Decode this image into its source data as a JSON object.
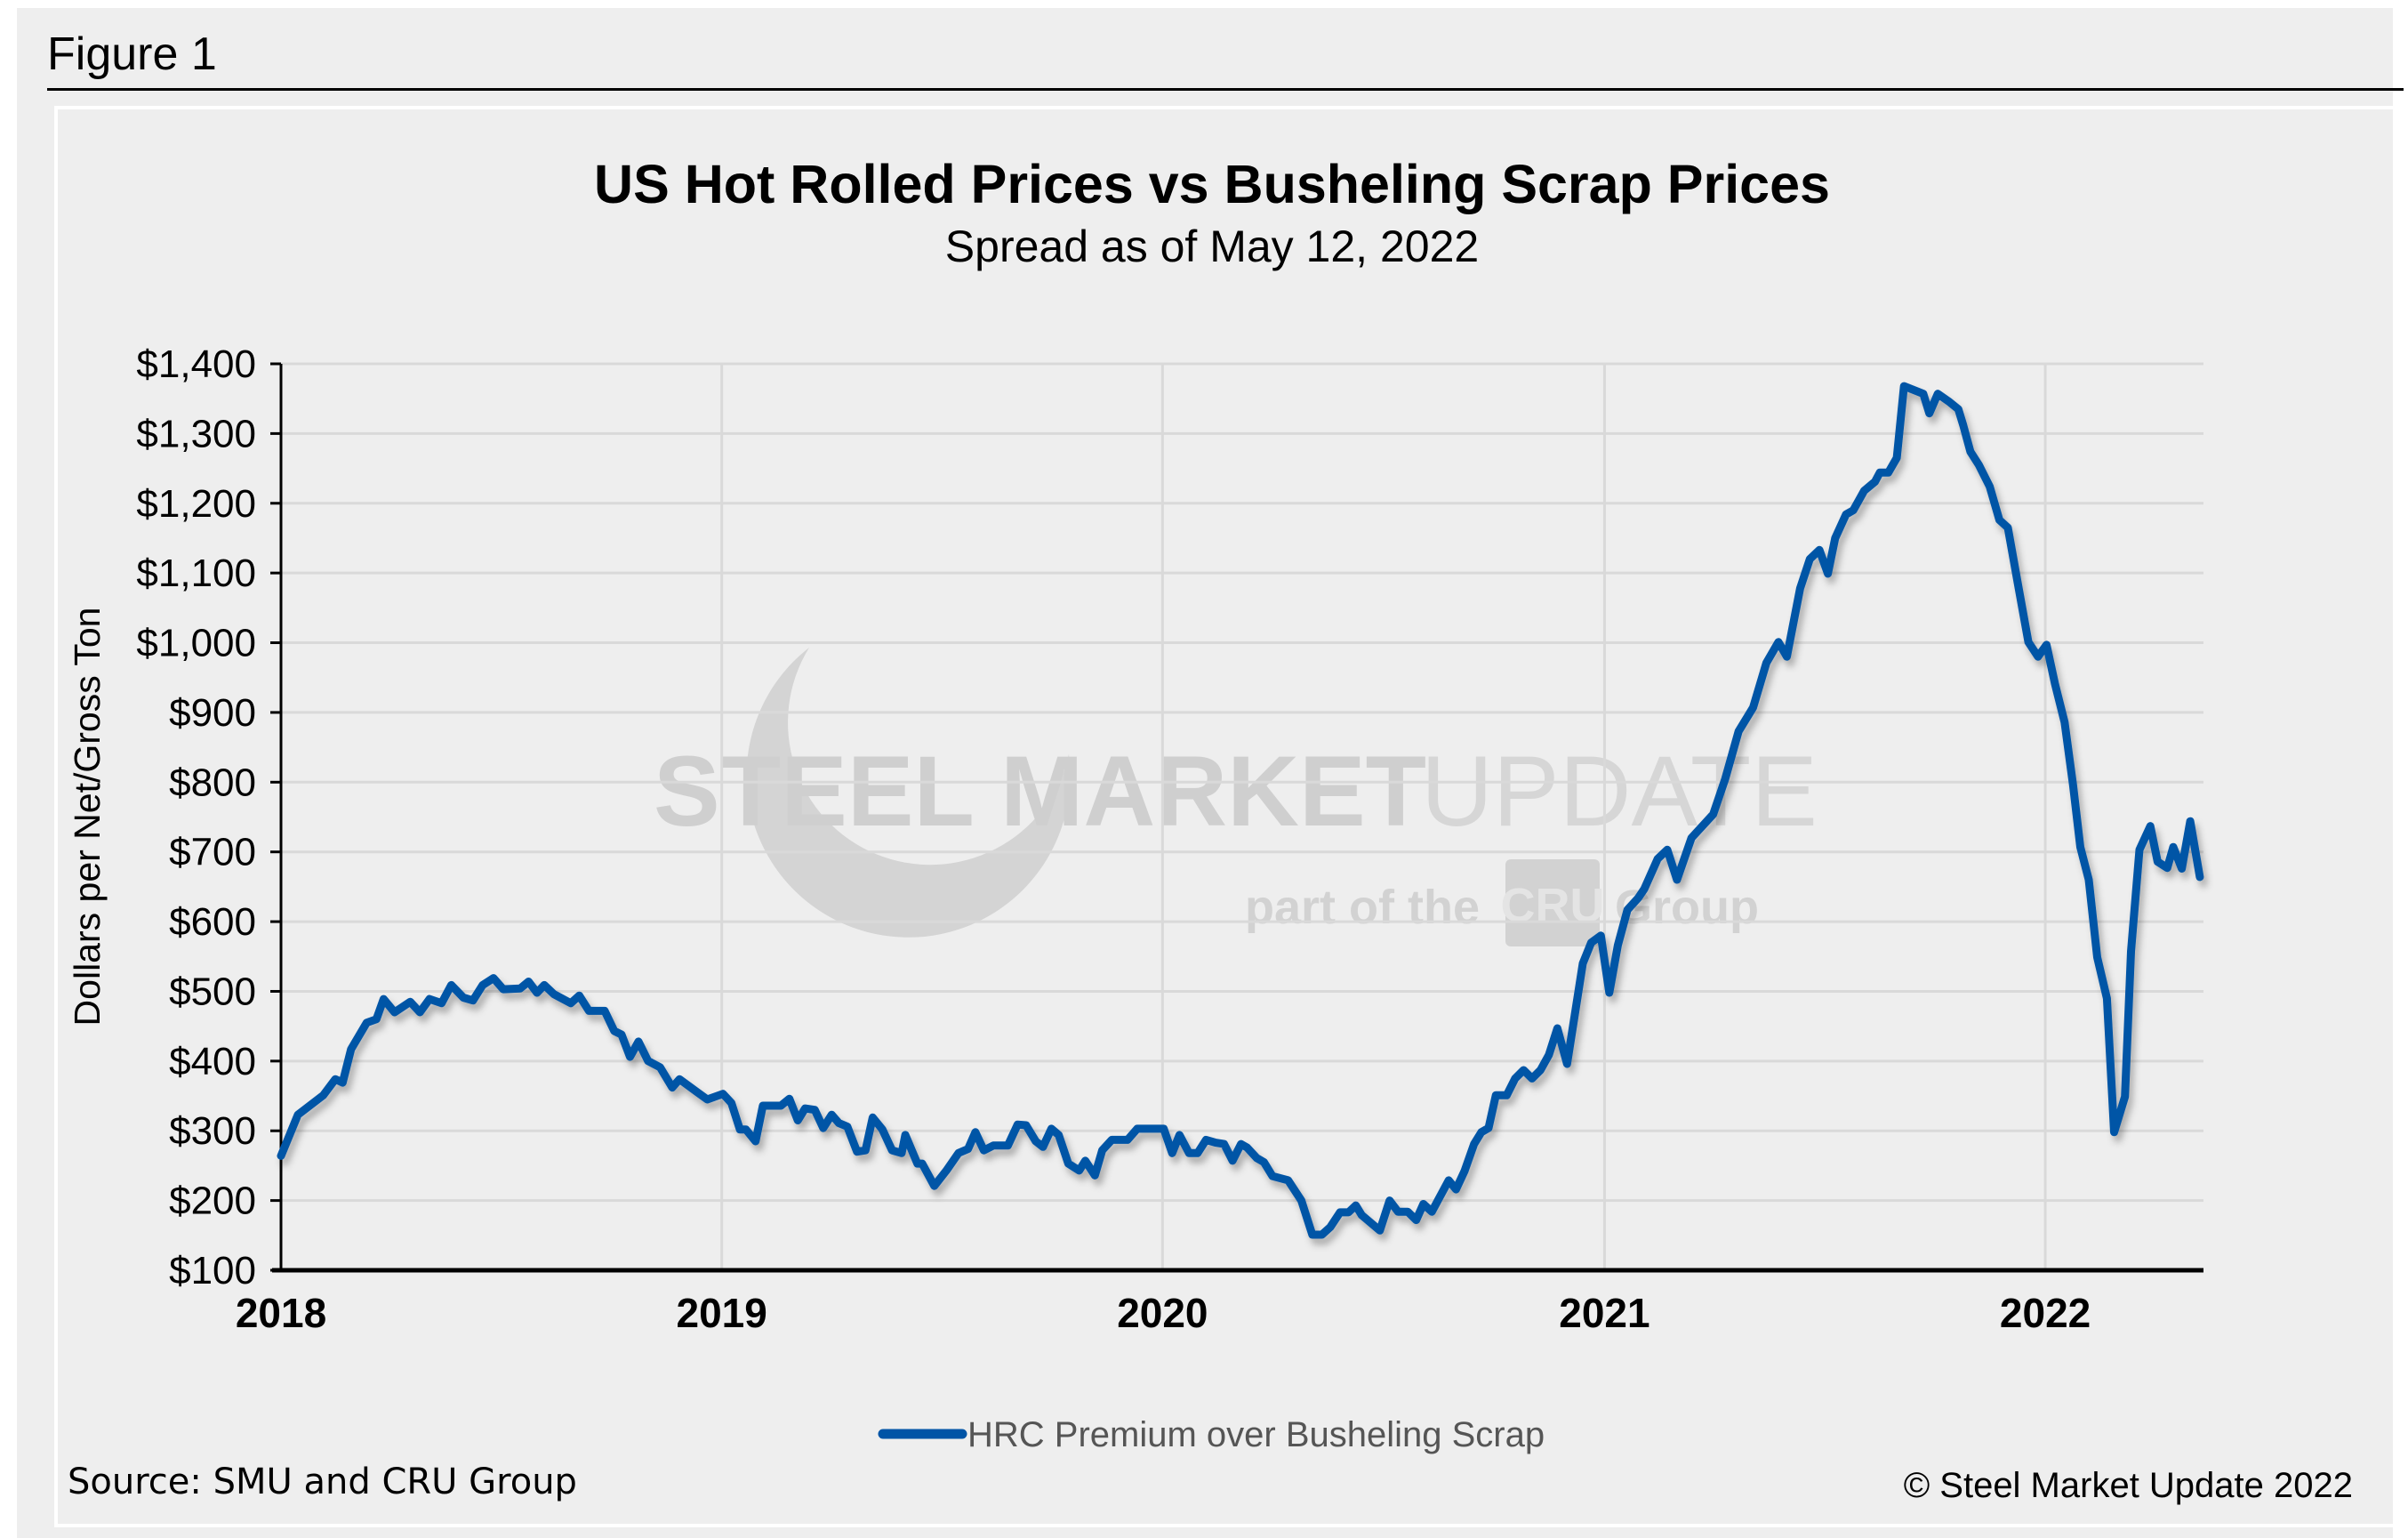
{
  "figure_label": "Figure 1",
  "watermark": {
    "brand_bold": "STEEL MARKET",
    "brand_light": "UPDATE",
    "part_of": "part of the",
    "cru": "CRU",
    "group": "Group"
  },
  "source": "Source: SMU and CRU Group",
  "copyright": "© Steel Market Update 2022",
  "colors": {
    "series": "#0054a6",
    "background": "#eeeeee",
    "grid": "#d9d9d9"
  },
  "chart_data": {
    "type": "line",
    "title": "US Hot Rolled Prices vs Busheling Scrap Prices",
    "subtitle": "Spread as of May 12, 2022",
    "xlabel": "",
    "ylabel": "Dollars per Net/Gross Ton",
    "xlim": [
      "2018-01-01",
      "2022-05-12"
    ],
    "ylim": [
      100,
      1400
    ],
    "x_ticks": [
      "2018",
      "2019",
      "2020",
      "2021",
      "2022"
    ],
    "y_ticks": [
      "$100",
      "$200",
      "$300",
      "$400",
      "$500",
      "$600",
      "$700",
      "$800",
      "$900",
      "$1,000",
      "$1,100",
      "$1,200",
      "$1,300",
      "$1,400"
    ],
    "grid": true,
    "legend_position": "bottom",
    "series": [
      {
        "name": "HRC Premium over Busheling Scrap",
        "color": "#0054a6",
        "points": [
          [
            "2018-01-01",
            264
          ],
          [
            "2018-01-15",
            323
          ],
          [
            "2018-02-05",
            351
          ],
          [
            "2018-02-15",
            374
          ],
          [
            "2018-02-21",
            369
          ],
          [
            "2018-02-28",
            417
          ],
          [
            "2018-03-13",
            455
          ],
          [
            "2018-03-21",
            460
          ],
          [
            "2018-03-27",
            489
          ],
          [
            "2018-04-05",
            470
          ],
          [
            "2018-04-18",
            485
          ],
          [
            "2018-04-26",
            470
          ],
          [
            "2018-05-04",
            489
          ],
          [
            "2018-05-14",
            483
          ],
          [
            "2018-05-22",
            509
          ],
          [
            "2018-06-01",
            491
          ],
          [
            "2018-06-09",
            487
          ],
          [
            "2018-06-17",
            509
          ],
          [
            "2018-06-26",
            519
          ],
          [
            "2018-07-04",
            503
          ],
          [
            "2018-07-18",
            504
          ],
          [
            "2018-07-25",
            514
          ],
          [
            "2018-08-01",
            498
          ],
          [
            "2018-08-07",
            509
          ],
          [
            "2018-08-15",
            496
          ],
          [
            "2018-08-29",
            483
          ],
          [
            "2018-09-05",
            494
          ],
          [
            "2018-09-13",
            472
          ],
          [
            "2018-09-26",
            472
          ],
          [
            "2018-10-04",
            443
          ],
          [
            "2018-10-10",
            438
          ],
          [
            "2018-10-17",
            406
          ],
          [
            "2018-10-24",
            428
          ],
          [
            "2018-11-01",
            400
          ],
          [
            "2018-11-11",
            391
          ],
          [
            "2018-11-21",
            362
          ],
          [
            "2018-11-27",
            374
          ],
          [
            "2018-12-12",
            355
          ],
          [
            "2018-12-20",
            345
          ],
          [
            "2019-01-02",
            353
          ],
          [
            "2019-01-09",
            340
          ],
          [
            "2019-01-16",
            302
          ],
          [
            "2019-01-21",
            302
          ],
          [
            "2019-01-29",
            285
          ],
          [
            "2019-02-04",
            336
          ],
          [
            "2019-02-19",
            336
          ],
          [
            "2019-02-26",
            346
          ],
          [
            "2019-03-05",
            315
          ],
          [
            "2019-03-11",
            332
          ],
          [
            "2019-03-19",
            330
          ],
          [
            "2019-03-26",
            304
          ],
          [
            "2019-04-02",
            323
          ],
          [
            "2019-04-08",
            311
          ],
          [
            "2019-04-15",
            306
          ],
          [
            "2019-04-23",
            270
          ],
          [
            "2019-04-30",
            272
          ],
          [
            "2019-05-06",
            319
          ],
          [
            "2019-05-14",
            302
          ],
          [
            "2019-05-22",
            272
          ],
          [
            "2019-05-30",
            268
          ],
          [
            "2019-06-02",
            294
          ],
          [
            "2019-06-12",
            253
          ],
          [
            "2019-06-16",
            253
          ],
          [
            "2019-06-26",
            221
          ],
          [
            "2019-07-06",
            243
          ],
          [
            "2019-07-16",
            268
          ],
          [
            "2019-07-24",
            274
          ],
          [
            "2019-07-30",
            298
          ],
          [
            "2019-08-06",
            272
          ],
          [
            "2019-08-14",
            279
          ],
          [
            "2019-08-26",
            279
          ],
          [
            "2019-09-03",
            309
          ],
          [
            "2019-09-10",
            308
          ],
          [
            "2019-09-18",
            285
          ],
          [
            "2019-09-24",
            277
          ],
          [
            "2019-10-01",
            303
          ],
          [
            "2019-10-07",
            294
          ],
          [
            "2019-10-15",
            253
          ],
          [
            "2019-10-24",
            243
          ],
          [
            "2019-10-29",
            257
          ],
          [
            "2019-11-06",
            236
          ],
          [
            "2019-11-12",
            272
          ],
          [
            "2019-11-20",
            287
          ],
          [
            "2019-12-03",
            287
          ],
          [
            "2019-12-11",
            303
          ],
          [
            "2020-01-02",
            303
          ],
          [
            "2020-01-09",
            268
          ],
          [
            "2020-01-15",
            294
          ],
          [
            "2020-01-23",
            268
          ],
          [
            "2020-01-30",
            268
          ],
          [
            "2020-02-06",
            287
          ],
          [
            "2020-02-14",
            283
          ],
          [
            "2020-02-21",
            281
          ],
          [
            "2020-02-28",
            257
          ],
          [
            "2020-03-06",
            281
          ],
          [
            "2020-03-11",
            276
          ],
          [
            "2020-03-19",
            261
          ],
          [
            "2020-03-25",
            255
          ],
          [
            "2020-04-01",
            235
          ],
          [
            "2020-04-14",
            229
          ],
          [
            "2020-04-25",
            200
          ],
          [
            "2020-05-04",
            151
          ],
          [
            "2020-05-12",
            151
          ],
          [
            "2020-05-19",
            162
          ],
          [
            "2020-05-27",
            183
          ],
          [
            "2020-06-03",
            183
          ],
          [
            "2020-06-09",
            193
          ],
          [
            "2020-06-14",
            179
          ],
          [
            "2020-06-29",
            157
          ],
          [
            "2020-07-07",
            200
          ],
          [
            "2020-07-14",
            184
          ],
          [
            "2020-07-22",
            184
          ],
          [
            "2020-07-29",
            172
          ],
          [
            "2020-08-04",
            195
          ],
          [
            "2020-08-11",
            184
          ],
          [
            "2020-08-25",
            229
          ],
          [
            "2020-08-31",
            216
          ],
          [
            "2020-09-07",
            242
          ],
          [
            "2020-09-15",
            281
          ],
          [
            "2020-09-21",
            298
          ],
          [
            "2020-09-27",
            304
          ],
          [
            "2020-10-03",
            351
          ],
          [
            "2020-10-12",
            351
          ],
          [
            "2020-10-19",
            375
          ],
          [
            "2020-10-26",
            387
          ],
          [
            "2020-11-02",
            375
          ],
          [
            "2020-11-09",
            387
          ],
          [
            "2020-11-16",
            409
          ],
          [
            "2020-11-23",
            447
          ],
          [
            "2020-12-01",
            396
          ],
          [
            "2020-12-08",
            473
          ],
          [
            "2020-12-14",
            540
          ],
          [
            "2020-12-21",
            570
          ],
          [
            "2020-12-29",
            580
          ],
          [
            "2021-01-05",
            498
          ],
          [
            "2021-01-12",
            566
          ],
          [
            "2021-01-20",
            617
          ],
          [
            "2021-01-29",
            634
          ],
          [
            "2021-02-03",
            647
          ],
          [
            "2021-02-14",
            690
          ],
          [
            "2021-02-22",
            703
          ],
          [
            "2021-03-02",
            660
          ],
          [
            "2021-03-14",
            720
          ],
          [
            "2021-04-01",
            754
          ],
          [
            "2021-04-11",
            805
          ],
          [
            "2021-04-22",
            873
          ],
          [
            "2021-05-04",
            907
          ],
          [
            "2021-05-15",
            971
          ],
          [
            "2021-05-25",
            1001
          ],
          [
            "2021-06-01",
            980
          ],
          [
            "2021-06-12",
            1078
          ],
          [
            "2021-06-20",
            1120
          ],
          [
            "2021-06-28",
            1133
          ],
          [
            "2021-07-05",
            1099
          ],
          [
            "2021-07-11",
            1150
          ],
          [
            "2021-07-20",
            1184
          ],
          [
            "2021-07-26",
            1190
          ],
          [
            "2021-08-04",
            1218
          ],
          [
            "2021-08-13",
            1231
          ],
          [
            "2021-08-17",
            1244
          ],
          [
            "2021-08-24",
            1244
          ],
          [
            "2021-08-31",
            1265
          ],
          [
            "2021-09-06",
            1368
          ],
          [
            "2021-09-22",
            1357
          ],
          [
            "2021-09-27",
            1329
          ],
          [
            "2021-10-04",
            1357
          ],
          [
            "2021-10-13",
            1346
          ],
          [
            "2021-10-21",
            1335
          ],
          [
            "2021-10-25",
            1312
          ],
          [
            "2021-10-31",
            1274
          ],
          [
            "2021-11-07",
            1255
          ],
          [
            "2021-11-16",
            1224
          ],
          [
            "2021-11-24",
            1176
          ],
          [
            "2021-12-01",
            1165
          ],
          [
            "2021-12-10",
            1078
          ],
          [
            "2021-12-18",
            1001
          ],
          [
            "2021-12-26",
            980
          ],
          [
            "2022-01-02",
            997
          ],
          [
            "2022-01-09",
            941
          ],
          [
            "2022-01-17",
            886
          ],
          [
            "2022-01-24",
            796
          ],
          [
            "2022-01-30",
            707
          ],
          [
            "2022-02-06",
            660
          ],
          [
            "2022-02-13",
            549
          ],
          [
            "2022-02-21",
            490
          ],
          [
            "2022-02-27",
            298
          ],
          [
            "2022-03-08",
            349
          ],
          [
            "2022-03-13",
            557
          ],
          [
            "2022-03-20",
            703
          ],
          [
            "2022-03-29",
            737
          ],
          [
            "2022-04-04",
            686
          ],
          [
            "2022-04-12",
            677
          ],
          [
            "2022-04-17",
            707
          ],
          [
            "2022-04-24",
            676
          ],
          [
            "2022-05-01",
            744
          ],
          [
            "2022-05-09",
            664
          ]
        ]
      }
    ]
  }
}
